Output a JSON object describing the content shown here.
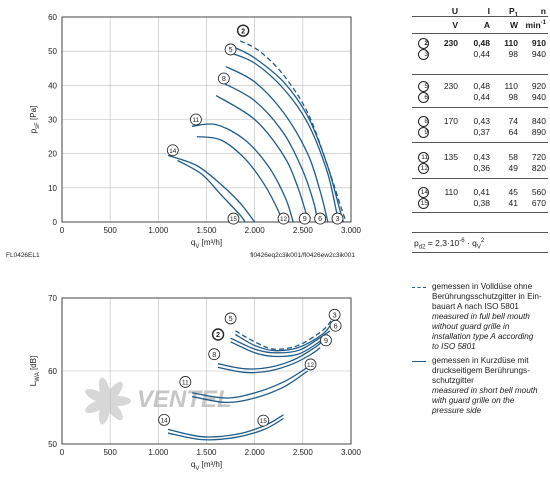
{
  "colors": {
    "curve": "#1f5b8a",
    "axis": "#333333",
    "grid": "#bdbdbd",
    "watermark": "#b8b8b8"
  },
  "chart_data": [
    {
      "type": "line",
      "id": "pressure",
      "xlabel": "q_V [m³/h]",
      "ylabel": "p_sF [Pa]",
      "xlim": [
        0,
        3000
      ],
      "ylim": [
        0,
        60
      ],
      "x_ticks": [
        "0",
        "500",
        "1.000",
        "1.500",
        "2.000",
        "2.500",
        "3.000"
      ],
      "y_ticks": [
        "0",
        "10",
        "20",
        "30",
        "40",
        "50",
        "60"
      ],
      "footer_left": "FL0426EL1",
      "footer_right": "fl0426eq2c3ik001/fl0426ew2c3ik001",
      "grid": true,
      "series": [
        {
          "marker": "2",
          "style": "dashed",
          "points": [
            [
              1850,
              53
            ],
            [
              2050,
              50
            ],
            [
              2300,
              43
            ],
            [
              2550,
              32
            ],
            [
              2750,
              17
            ],
            [
              2900,
              4
            ],
            [
              2950,
              0
            ]
          ]
        },
        {
          "marker": "3",
          "style": "solid",
          "points": [
            [
              1800,
              51
            ],
            [
              2000,
              48
            ],
            [
              2300,
              41
            ],
            [
              2550,
              31
            ],
            [
              2750,
              17
            ],
            [
              2880,
              4
            ],
            [
              2920,
              0
            ]
          ]
        },
        {
          "marker": "5",
          "style": "solid",
          "points": [
            [
              1750,
              49.5
            ],
            [
              2000,
              46.5
            ],
            [
              2300,
              39
            ],
            [
              2550,
              29
            ],
            [
              2750,
              15
            ],
            [
              2850,
              3
            ],
            [
              2880,
              0
            ]
          ]
        },
        {
          "marker": "6",
          "style": "solid",
          "points": [
            [
              1700,
              45.5
            ],
            [
              2000,
              41
            ],
            [
              2300,
              32
            ],
            [
              2550,
              20
            ],
            [
              2680,
              9
            ],
            [
              2760,
              0
            ]
          ]
        },
        {
          "marker": "8",
          "style": "solid",
          "points": [
            [
              1650,
              41
            ],
            [
              2000,
              35.5
            ],
            [
              2300,
              26
            ],
            [
              2500,
              15
            ],
            [
              2620,
              5
            ],
            [
              2650,
              0
            ]
          ]
        },
        {
          "marker": "9",
          "style": "solid",
          "points": [
            [
              1600,
              37
            ],
            [
              2000,
              30
            ],
            [
              2300,
              19.5
            ],
            [
              2450,
              10
            ],
            [
              2560,
              0
            ]
          ]
        },
        {
          "marker": "11",
          "style": "solid",
          "points": [
            [
              1350,
              28
            ],
            [
              1600,
              28.5
            ],
            [
              1900,
              24
            ],
            [
              2150,
              16
            ],
            [
              2320,
              7
            ],
            [
              2400,
              0
            ]
          ]
        },
        {
          "marker": "12",
          "style": "solid",
          "points": [
            [
              1400,
              25
            ],
            [
              1650,
              24
            ],
            [
              1900,
              18.5
            ],
            [
              2100,
              11
            ],
            [
              2250,
              3
            ],
            [
              2280,
              0
            ]
          ]
        },
        {
          "marker": "14",
          "style": "solid",
          "points": [
            [
              1100,
              19.5
            ],
            [
              1400,
              16.5
            ],
            [
              1650,
              11
            ],
            [
              1850,
              5.5
            ],
            [
              2000,
              0
            ]
          ]
        },
        {
          "marker": "15",
          "style": "solid",
          "points": [
            [
              1200,
              18
            ],
            [
              1450,
              14
            ],
            [
              1650,
              8
            ],
            [
              1850,
              2
            ],
            [
              1900,
              0
            ]
          ]
        }
      ],
      "markers": [
        {
          "label": "2",
          "x": 1880,
          "y": 56,
          "bold": true
        },
        {
          "label": "5",
          "x": 1750,
          "y": 50.5
        },
        {
          "label": "8",
          "x": 1680,
          "y": 42
        },
        {
          "label": "11",
          "x": 1390,
          "y": 30
        },
        {
          "label": "14",
          "x": 1150,
          "y": 21
        },
        {
          "label": "15",
          "x": 1780,
          "y": 1
        },
        {
          "label": "12",
          "x": 2300,
          "y": 1
        },
        {
          "label": "9",
          "x": 2520,
          "y": 1
        },
        {
          "label": "6",
          "x": 2680,
          "y": 1
        },
        {
          "label": "3",
          "x": 2860,
          "y": 1
        }
      ]
    },
    {
      "type": "line",
      "id": "sound",
      "xlabel": "q_V [m³/h]",
      "ylabel": "L_WA [dB]",
      "xlim": [
        0,
        3000
      ],
      "ylim": [
        50,
        70
      ],
      "x_ticks": [
        "0",
        "500",
        "1.000",
        "1.500",
        "2.000",
        "2.500",
        "3.000"
      ],
      "y_ticks": [
        "50",
        "60",
        "70"
      ],
      "grid": true,
      "watermark": "VENTEL",
      "series": [
        {
          "marker": "2",
          "style": "dashed",
          "points": [
            [
              1800,
              65.5
            ],
            [
              2000,
              64
            ],
            [
              2200,
              63
            ],
            [
              2450,
              63.5
            ],
            [
              2700,
              65.5
            ],
            [
              2800,
              67
            ]
          ]
        },
        {
          "marker": "3",
          "style": "solid",
          "points": [
            [
              1800,
              65
            ],
            [
              2000,
              63.5
            ],
            [
              2200,
              62.8
            ],
            [
              2450,
              63.2
            ],
            [
              2700,
              65
            ],
            [
              2800,
              66.5
            ]
          ]
        },
        {
          "marker": "5",
          "style": "solid",
          "points": [
            [
              1750,
              64.5
            ],
            [
              2000,
              63
            ],
            [
              2200,
              62.5
            ],
            [
              2450,
              62.8
            ],
            [
              2650,
              64.3
            ],
            [
              2780,
              65.5
            ]
          ]
        },
        {
          "marker": "6",
          "style": "solid",
          "points": [
            [
              1750,
              64
            ],
            [
              2000,
              62.5
            ],
            [
              2200,
              62
            ],
            [
              2450,
              62.3
            ],
            [
              2650,
              63.8
            ],
            [
              2760,
              65
            ]
          ]
        },
        {
          "marker": "8",
          "style": "solid",
          "points": [
            [
              1620,
              61
            ],
            [
              1900,
              60.3
            ],
            [
              2150,
              60.5
            ],
            [
              2400,
              61.5
            ],
            [
              2600,
              63
            ],
            [
              2700,
              64
            ]
          ]
        },
        {
          "marker": "9",
          "style": "solid",
          "points": [
            [
              1620,
              60.5
            ],
            [
              1900,
              59.8
            ],
            [
              2150,
              60
            ],
            [
              2400,
              61
            ],
            [
              2600,
              62.4
            ],
            [
              2680,
              63.2
            ]
          ]
        },
        {
          "marker": "11",
          "style": "solid",
          "points": [
            [
              1350,
              57
            ],
            [
              1700,
              56.3
            ],
            [
              2000,
              57
            ],
            [
              2300,
              58.5
            ],
            [
              2550,
              60.5
            ]
          ]
        },
        {
          "marker": "12",
          "style": "solid",
          "points": [
            [
              1350,
              56.5
            ],
            [
              1700,
              55.7
            ],
            [
              2000,
              56.3
            ],
            [
              2300,
              57.8
            ],
            [
              2550,
              60
            ]
          ]
        },
        {
          "marker": "14",
          "style": "solid",
          "points": [
            [
              1100,
              52
            ],
            [
              1450,
              51
            ],
            [
              1800,
              51.3
            ],
            [
              2100,
              52.5
            ],
            [
              2300,
              54
            ]
          ]
        },
        {
          "marker": "15",
          "style": "solid",
          "points": [
            [
              1100,
              51.5
            ],
            [
              1450,
              50.6
            ],
            [
              1800,
              50.9
            ],
            [
              2100,
              52
            ],
            [
              2300,
              53.5
            ]
          ]
        }
      ],
      "markers": [
        {
          "label": "5",
          "x": 1750,
          "y": 67.2
        },
        {
          "label": "2",
          "x": 1620,
          "y": 65,
          "bold": true
        },
        {
          "label": "8",
          "x": 1580,
          "y": 62.3
        },
        {
          "label": "11",
          "x": 1280,
          "y": 58.5
        },
        {
          "label": "14",
          "x": 1060,
          "y": 53.3
        },
        {
          "label": "15",
          "x": 2090,
          "y": 53.2
        },
        {
          "label": "12",
          "x": 2580,
          "y": 60.9
        },
        {
          "label": "9",
          "x": 2740,
          "y": 64.2
        },
        {
          "label": "6",
          "x": 2840,
          "y": 66.2
        },
        {
          "label": "3",
          "x": 2830,
          "y": 67.7
        }
      ]
    }
  ],
  "table": {
    "headers": [
      "U",
      "I",
      "P1",
      "n"
    ],
    "units": [
      "V",
      "A",
      "W",
      "min-1"
    ],
    "rows": [
      {
        "marker": "2",
        "bold": true,
        "U": "230",
        "I": "0,48",
        "P": "110",
        "n": "910"
      },
      {
        "marker": "3",
        "bold": false,
        "U": "",
        "I": "0,44",
        "P": "98",
        "n": "940"
      },
      {
        "marker": "5",
        "bold": false,
        "U": "230",
        "I": "0,48",
        "P": "110",
        "n": "920"
      },
      {
        "marker": "6",
        "bold": false,
        "U": "",
        "I": "0,44",
        "P": "98",
        "n": "940"
      },
      {
        "marker": "8",
        "bold": false,
        "U": "170",
        "I": "0,43",
        "P": "74",
        "n": "840"
      },
      {
        "marker": "9",
        "bold": false,
        "U": "",
        "I": "0,37",
        "P": "64",
        "n": "890"
      },
      {
        "marker": "11",
        "bold": false,
        "U": "135",
        "I": "0,43",
        "P": "58",
        "n": "720"
      },
      {
        "marker": "12",
        "bold": false,
        "U": "",
        "I": "0,36",
        "P": "49",
        "n": "820"
      },
      {
        "marker": "14",
        "bold": false,
        "U": "110",
        "I": "0,41",
        "P": "45",
        "n": "560"
      },
      {
        "marker": "15",
        "bold": false,
        "U": "",
        "I": "0,38",
        "P": "41",
        "n": "670"
      }
    ],
    "formula": "pd2 = 2,3·10-6 · qV2"
  },
  "legend": {
    "dashed": [
      "gemessen in Volldüse ohne",
      "Berührungsschutzgitter in Ein-",
      "bauart A nach ISO 5801",
      "measured in full bell mouth",
      "without guard grille in",
      "installation type A according",
      "to ISO 5801"
    ],
    "solid": [
      "gemessen in Kurzdüse mit",
      "druckseitigem Berührungs-",
      "schutzgitter",
      "measured in short bell mouth",
      "with guard grille on the",
      "pressure side"
    ]
  }
}
